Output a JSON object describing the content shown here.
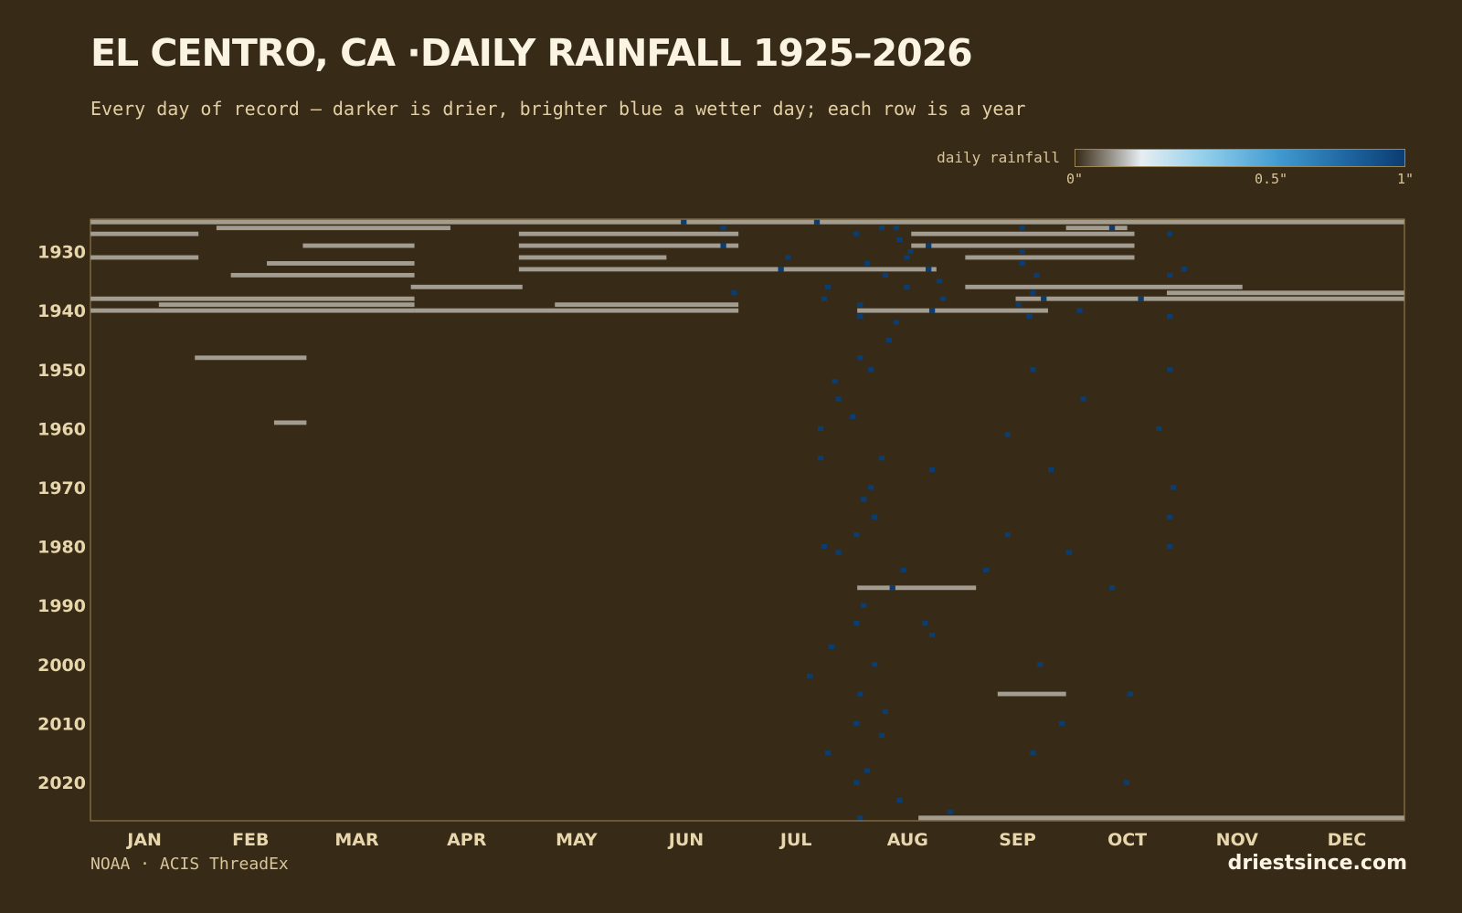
{
  "header": {
    "title": "EL CENTRO, CA ·DAILY RAINFALL 1925–2026",
    "subtitle": "Every day of record — darker is drier, brighter blue a wetter day; each row is a year"
  },
  "legend": {
    "label": "daily rainfall",
    "ticks": [
      "0\"",
      "0.5\"",
      "1\""
    ]
  },
  "footer": {
    "source": "NOAA · ACIS ThreadEx",
    "brand": "driestsince.com"
  },
  "colors": {
    "background": "#372a16",
    "missing": "#a39d91",
    "axis_text": "#e8d6ac",
    "scale": [
      "#372a16",
      "#8f8a80",
      "#e6eef2",
      "#8fcdea",
      "#3f9ad0",
      "#1f67a3",
      "#0b3d71"
    ]
  },
  "chart_data": {
    "type": "heatmap",
    "title": "EL CENTRO, CA ·DAILY RAINFALL 1925–2026",
    "x_axis": {
      "type": "day-of-year",
      "tick_labels": [
        "JAN",
        "FEB",
        "MAR",
        "APR",
        "MAY",
        "JUN",
        "JUL",
        "AUG",
        "SEP",
        "OCT",
        "NOV",
        "DEC"
      ]
    },
    "y_axis": {
      "type": "year",
      "range": [
        1925,
        2026
      ],
      "tick_labels": [
        "1930",
        "1940",
        "1950",
        "1960",
        "1970",
        "1980",
        "1990",
        "2000",
        "2010",
        "2020"
      ]
    },
    "value_range": [
      0,
      1
    ],
    "unit": "inches",
    "cells": [
      [
        1925,
        [
          [
            165,
            196
          ],
          [
            202,
            212
          ]
        ]
      ],
      [
        1926,
        [
          [
            176,
            197
          ],
          [
            220,
            231
          ],
          [
            224,
            235
          ],
          [
            259,
            271
          ],
          [
            284,
            303
          ]
        ]
      ],
      [
        1927,
        [
          [
            213,
            244
          ],
          [
            300,
            336
          ]
        ]
      ],
      [
        1928,
        [
          [
            225,
            251
          ]
        ]
      ],
      [
        1929,
        [
          [
            176,
            181
          ],
          [
            233,
            245
          ]
        ]
      ],
      [
        1930,
        [
          [
            228,
            247
          ],
          [
            259,
            306
          ]
        ]
      ],
      [
        1931,
        [
          [
            194,
            220
          ],
          [
            227,
            242
          ]
        ]
      ],
      [
        1932,
        [
          [
            216,
            225
          ],
          [
            259,
            285
          ]
        ]
      ],
      [
        1933,
        [
          [
            192,
            217
          ],
          [
            233,
            300
          ],
          [
            304,
            306
          ]
        ]
      ],
      [
        1934,
        [
          [
            221,
            264
          ],
          [
            263,
            282
          ],
          [
            300,
            331
          ]
        ]
      ],
      [
        1935,
        [
          [
            236,
            250
          ]
        ]
      ],
      [
        1936,
        [
          [
            205,
            224
          ],
          [
            227,
            246
          ]
        ]
      ],
      [
        1937,
        [
          [
            179,
            245
          ],
          [
            262,
            279
          ]
        ]
      ],
      [
        1938,
        [
          [
            204,
            237
          ],
          [
            237,
            252
          ],
          [
            265,
            302
          ],
          [
            292,
            305
          ]
        ]
      ],
      [
        1939,
        [
          [
            214,
            254
          ],
          [
            258,
            318
          ]
        ]
      ],
      [
        1940,
        [
          [
            234,
            244
          ],
          [
            275,
            289
          ]
        ]
      ],
      [
        1941,
        [
          [
            214,
            231
          ],
          [
            261,
            263
          ],
          [
            300,
            310
          ]
        ]
      ],
      [
        1942,
        [
          [
            224,
            224
          ]
        ]
      ],
      [
        1945,
        [
          [
            222,
            228
          ]
        ]
      ],
      [
        1948,
        [
          [
            214,
            234
          ]
        ]
      ],
      [
        1950,
        [
          [
            217,
            225
          ],
          [
            262,
            275
          ],
          [
            300,
            323
          ]
        ]
      ],
      [
        1952,
        [
          [
            207,
            231
          ]
        ]
      ],
      [
        1955,
        [
          [
            208,
            238
          ],
          [
            276,
            285
          ]
        ]
      ],
      [
        1958,
        [
          [
            212,
            233
          ]
        ]
      ],
      [
        1960,
        [
          [
            203,
            222
          ],
          [
            297,
            319
          ]
        ]
      ],
      [
        1961,
        [
          [
            255,
            270
          ]
        ]
      ],
      [
        1965,
        [
          [
            203,
            210
          ],
          [
            220,
            229
          ]
        ]
      ],
      [
        1967,
        [
          [
            234,
            240
          ],
          [
            267,
            288
          ]
        ]
      ],
      [
        1970,
        [
          [
            217,
            227
          ],
          [
            301,
            335
          ]
        ]
      ],
      [
        1972,
        [
          [
            215,
            221
          ]
        ]
      ],
      [
        1975,
        [
          [
            218,
            228
          ],
          [
            300,
            328
          ]
        ]
      ],
      [
        1978,
        [
          [
            213,
            225
          ],
          [
            255,
            279
          ]
        ]
      ],
      [
        1980,
        [
          [
            204,
            219
          ],
          [
            300,
            309
          ]
        ]
      ],
      [
        1981,
        [
          [
            208,
            233
          ],
          [
            272,
            281
          ]
        ]
      ],
      [
        1984,
        [
          [
            226,
            240
          ],
          [
            249,
            259
          ]
        ]
      ],
      [
        1987,
        [
          [
            223,
            231
          ],
          [
            284,
            319
          ]
        ]
      ],
      [
        1990,
        [
          [
            215,
            237
          ]
        ]
      ],
      [
        1993,
        [
          [
            213,
            221
          ],
          [
            232,
            249
          ]
        ]
      ],
      [
        1995,
        [
          [
            234,
            247
          ]
        ]
      ],
      [
        1997,
        [
          [
            206,
            228
          ]
        ]
      ],
      [
        2000,
        [
          [
            218,
            230
          ],
          [
            264,
            278
          ]
        ]
      ],
      [
        2002,
        [
          [
            200,
            215
          ]
        ]
      ],
      [
        2005,
        [
          [
            214,
            233
          ],
          [
            289,
            304
          ]
        ]
      ],
      [
        2008,
        [
          [
            221,
            230
          ]
        ]
      ],
      [
        2010,
        [
          [
            213,
            225
          ],
          [
            270,
            289
          ]
        ]
      ],
      [
        2012,
        [
          [
            220,
            226
          ]
        ]
      ],
      [
        2015,
        [
          [
            205,
            219
          ],
          [
            262,
            273
          ]
        ]
      ],
      [
        2018,
        [
          [
            216,
            231
          ]
        ]
      ],
      [
        2020,
        [
          [
            213,
            220
          ],
          [
            288,
            305
          ]
        ]
      ],
      [
        2023,
        [
          [
            225,
            244
          ]
        ]
      ],
      [
        2025,
        [
          [
            239,
            251
          ]
        ]
      ],
      [
        2026,
        [
          [
            214,
            221
          ]
        ]
      ]
    ],
    "missing_spans": [
      [
        1925,
        1,
        365
      ],
      [
        1926,
        36,
        100
      ],
      [
        1926,
        272,
        288
      ],
      [
        1927,
        1,
        30
      ],
      [
        1927,
        120,
        180
      ],
      [
        1927,
        229,
        290
      ],
      [
        1929,
        60,
        90
      ],
      [
        1929,
        120,
        180
      ],
      [
        1929,
        229,
        290
      ],
      [
        1931,
        1,
        30
      ],
      [
        1931,
        120,
        160
      ],
      [
        1931,
        244,
        290
      ],
      [
        1932,
        50,
        90
      ],
      [
        1933,
        120,
        235
      ],
      [
        1934,
        40,
        90
      ],
      [
        1936,
        90,
        120
      ],
      [
        1936,
        244,
        320
      ],
      [
        1937,
        300,
        365
      ],
      [
        1938,
        1,
        90
      ],
      [
        1938,
        258,
        365
      ],
      [
        1939,
        20,
        90
      ],
      [
        1939,
        130,
        180
      ],
      [
        1940,
        1,
        90
      ],
      [
        1940,
        91,
        180
      ],
      [
        1940,
        214,
        266
      ],
      [
        1948,
        30,
        60
      ],
      [
        1959,
        52,
        60
      ],
      [
        1987,
        214,
        246
      ],
      [
        2005,
        253,
        271
      ],
      [
        2026,
        231,
        365
      ]
    ]
  }
}
